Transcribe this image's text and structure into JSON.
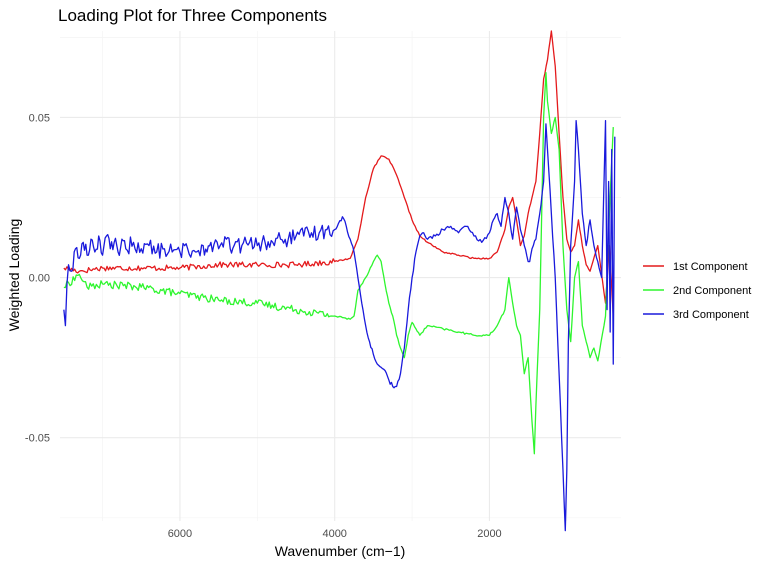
{
  "chart_data": {
    "type": "line",
    "title": "Loading Plot for Three Components",
    "xlabel": "Wavenumber (cm−1)",
    "ylabel": "Weighted Loading",
    "xlim": [
      7550,
      300
    ],
    "ylim": [
      -0.076,
      0.077
    ],
    "x_ticks": [
      6000,
      4000,
      2000
    ],
    "x_tick_labels": [
      "6000",
      "4000",
      "2000"
    ],
    "y_ticks": [
      -0.05,
      0.0,
      0.05
    ],
    "y_tick_labels": [
      "-0.05",
      "0.00",
      "0.05"
    ],
    "grid": true,
    "legend_position": "right",
    "series": [
      {
        "name": "1st Component",
        "color": "#e41a1c",
        "points": [
          [
            7500,
            0.003
          ],
          [
            7300,
            0.002
          ],
          [
            7000,
            0.003
          ],
          [
            6500,
            0.003
          ],
          [
            6000,
            0.003
          ],
          [
            5500,
            0.004
          ],
          [
            5000,
            0.004
          ],
          [
            4500,
            0.004
          ],
          [
            4000,
            0.005
          ],
          [
            3800,
            0.006
          ],
          [
            3700,
            0.012
          ],
          [
            3600,
            0.025
          ],
          [
            3500,
            0.034
          ],
          [
            3400,
            0.038
          ],
          [
            3300,
            0.037
          ],
          [
            3200,
            0.032
          ],
          [
            3100,
            0.025
          ],
          [
            3000,
            0.018
          ],
          [
            2900,
            0.013
          ],
          [
            2800,
            0.011
          ],
          [
            2600,
            0.008
          ],
          [
            2400,
            0.007
          ],
          [
            2200,
            0.006
          ],
          [
            2000,
            0.006
          ],
          [
            1900,
            0.008
          ],
          [
            1800,
            0.015
          ],
          [
            1750,
            0.022
          ],
          [
            1700,
            0.025
          ],
          [
            1650,
            0.018
          ],
          [
            1600,
            0.01
          ],
          [
            1550,
            0.013
          ],
          [
            1500,
            0.02
          ],
          [
            1450,
            0.025
          ],
          [
            1400,
            0.03
          ],
          [
            1350,
            0.045
          ],
          [
            1300,
            0.062
          ],
          [
            1250,
            0.068
          ],
          [
            1200,
            0.077
          ],
          [
            1150,
            0.066
          ],
          [
            1100,
            0.045
          ],
          [
            1050,
            0.025
          ],
          [
            1000,
            0.012
          ],
          [
            950,
            0.008
          ],
          [
            900,
            0.01
          ],
          [
            850,
            0.018
          ],
          [
            800,
            0.01
          ],
          [
            750,
            0.004
          ],
          [
            700,
            0.002
          ],
          [
            600,
            0.01
          ],
          [
            500,
            -0.008
          ],
          [
            450,
            0.01
          ],
          [
            400,
            -0.012
          ]
        ]
      },
      {
        "name": "2nd Component",
        "color": "#2ef52e",
        "points": [
          [
            7500,
            -0.003
          ],
          [
            7300,
            0.001
          ],
          [
            7200,
            -0.003
          ],
          [
            7000,
            -0.002
          ],
          [
            6500,
            -0.003
          ],
          [
            6000,
            -0.005
          ],
          [
            5500,
            -0.007
          ],
          [
            5000,
            -0.008
          ],
          [
            4500,
            -0.01
          ],
          [
            4000,
            -0.012
          ],
          [
            3800,
            -0.013
          ],
          [
            3750,
            -0.012
          ],
          [
            3700,
            -0.004
          ],
          [
            3600,
            0.0
          ],
          [
            3500,
            0.005
          ],
          [
            3450,
            0.007
          ],
          [
            3400,
            0.005
          ],
          [
            3350,
            -0.002
          ],
          [
            3300,
            -0.008
          ],
          [
            3250,
            -0.012
          ],
          [
            3200,
            -0.018
          ],
          [
            3150,
            -0.022
          ],
          [
            3100,
            -0.025
          ],
          [
            3050,
            -0.018
          ],
          [
            3000,
            -0.014
          ],
          [
            2950,
            -0.016
          ],
          [
            2900,
            -0.018
          ],
          [
            2800,
            -0.015
          ],
          [
            2600,
            -0.016
          ],
          [
            2400,
            -0.017
          ],
          [
            2200,
            -0.018
          ],
          [
            2000,
            -0.018
          ],
          [
            1900,
            -0.015
          ],
          [
            1800,
            -0.01
          ],
          [
            1750,
            0.0
          ],
          [
            1700,
            -0.008
          ],
          [
            1650,
            -0.015
          ],
          [
            1600,
            -0.018
          ],
          [
            1550,
            -0.03
          ],
          [
            1500,
            -0.025
          ],
          [
            1450,
            -0.045
          ],
          [
            1420,
            -0.055
          ],
          [
            1400,
            -0.04
          ],
          [
            1350,
            -0.01
          ],
          [
            1300,
            0.05
          ],
          [
            1270,
            0.064
          ],
          [
            1250,
            0.055
          ],
          [
            1200,
            0.045
          ],
          [
            1150,
            0.05
          ],
          [
            1100,
            0.04
          ],
          [
            1050,
            0.01
          ],
          [
            1000,
            -0.01
          ],
          [
            950,
            -0.02
          ],
          [
            900,
            0.0
          ],
          [
            850,
            0.005
          ],
          [
            800,
            -0.015
          ],
          [
            750,
            -0.02
          ],
          [
            700,
            -0.025
          ],
          [
            650,
            -0.022
          ],
          [
            600,
            -0.026
          ],
          [
            500,
            -0.012
          ],
          [
            450,
            0.02
          ],
          [
            400,
            0.047
          ]
        ]
      },
      {
        "name": "3rd Component",
        "color": "#1a1adc",
        "points": [
          [
            7500,
            -0.01
          ],
          [
            7480,
            -0.015
          ],
          [
            7460,
            -0.002
          ],
          [
            7440,
            0.004
          ],
          [
            7400,
            0.002
          ],
          [
            7350,
            0.009
          ],
          [
            7300,
            0.006
          ],
          [
            7250,
            0.011
          ],
          [
            7200,
            0.007
          ],
          [
            7150,
            0.012
          ],
          [
            7100,
            0.008
          ],
          [
            7050,
            0.013
          ],
          [
            7000,
            0.007
          ],
          [
            6950,
            0.013
          ],
          [
            6900,
            0.009
          ],
          [
            6850,
            0.011
          ],
          [
            6800,
            0.008
          ],
          [
            6750,
            0.012
          ],
          [
            6700,
            0.009
          ],
          [
            6600,
            0.011
          ],
          [
            6500,
            0.009
          ],
          [
            6400,
            0.01
          ],
          [
            6300,
            0.008
          ],
          [
            6200,
            0.009
          ],
          [
            6100,
            0.008
          ],
          [
            6000,
            0.008
          ],
          [
            5900,
            0.009
          ],
          [
            5800,
            0.008
          ],
          [
            5700,
            0.01
          ],
          [
            5650,
            0.008
          ],
          [
            5600,
            0.011
          ],
          [
            5500,
            0.009
          ],
          [
            5400,
            0.012
          ],
          [
            5350,
            0.009
          ],
          [
            5300,
            0.01
          ],
          [
            5200,
            0.01
          ],
          [
            5100,
            0.011
          ],
          [
            5000,
            0.01
          ],
          [
            4900,
            0.011
          ],
          [
            4800,
            0.011
          ],
          [
            4700,
            0.012
          ],
          [
            4600,
            0.012
          ],
          [
            4500,
            0.013
          ],
          [
            4400,
            0.013
          ],
          [
            4300,
            0.014
          ],
          [
            4200,
            0.014
          ],
          [
            4100,
            0.015
          ],
          [
            4000,
            0.015
          ],
          [
            3950,
            0.017
          ],
          [
            3900,
            0.019
          ],
          [
            3850,
            0.016
          ],
          [
            3800,
            0.012
          ],
          [
            3750,
            0.008
          ],
          [
            3700,
            0.0
          ],
          [
            3650,
            -0.008
          ],
          [
            3600,
            -0.015
          ],
          [
            3550,
            -0.02
          ],
          [
            3500,
            -0.024
          ],
          [
            3450,
            -0.027
          ],
          [
            3400,
            -0.028
          ],
          [
            3350,
            -0.029
          ],
          [
            3300,
            -0.032
          ],
          [
            3250,
            -0.034
          ],
          [
            3200,
            -0.034
          ],
          [
            3150,
            -0.03
          ],
          [
            3100,
            -0.022
          ],
          [
            3050,
            -0.01
          ],
          [
            3000,
            0.0
          ],
          [
            2950,
            0.008
          ],
          [
            2900,
            0.013
          ],
          [
            2850,
            0.014
          ],
          [
            2800,
            0.012
          ],
          [
            2700,
            0.013
          ],
          [
            2600,
            0.015
          ],
          [
            2500,
            0.016
          ],
          [
            2400,
            0.014
          ],
          [
            2300,
            0.016
          ],
          [
            2200,
            0.013
          ],
          [
            2100,
            0.011
          ],
          [
            2000,
            0.014
          ],
          [
            1950,
            0.018
          ],
          [
            1900,
            0.02
          ],
          [
            1850,
            0.016
          ],
          [
            1800,
            0.025
          ],
          [
            1750,
            0.02
          ],
          [
            1700,
            0.012
          ],
          [
            1650,
            0.022
          ],
          [
            1600,
            0.015
          ],
          [
            1550,
            0.01
          ],
          [
            1500,
            0.005
          ],
          [
            1480,
            0.005
          ],
          [
            1450,
            0.009
          ],
          [
            1400,
            0.012
          ],
          [
            1350,
            0.02
          ],
          [
            1300,
            0.03
          ],
          [
            1270,
            0.048
          ],
          [
            1250,
            0.04
          ],
          [
            1200,
            0.02
          ],
          [
            1150,
            0.0
          ],
          [
            1100,
            -0.03
          ],
          [
            1050,
            -0.06
          ],
          [
            1020,
            -0.079
          ],
          [
            1000,
            -0.06
          ],
          [
            980,
            -0.02
          ],
          [
            950,
            0.01
          ],
          [
            900,
            0.03
          ],
          [
            880,
            0.049
          ],
          [
            850,
            0.04
          ],
          [
            800,
            0.02
          ],
          [
            750,
            0.01
          ],
          [
            700,
            0.018
          ],
          [
            650,
            0.01
          ],
          [
            600,
            0.005
          ],
          [
            550,
            0.0
          ],
          [
            500,
            0.049
          ],
          [
            480,
            -0.01
          ],
          [
            460,
            0.03
          ],
          [
            440,
            -0.017
          ],
          [
            420,
            0.04
          ],
          [
            400,
            -0.027
          ],
          [
            380,
            0.044
          ]
        ]
      }
    ]
  }
}
